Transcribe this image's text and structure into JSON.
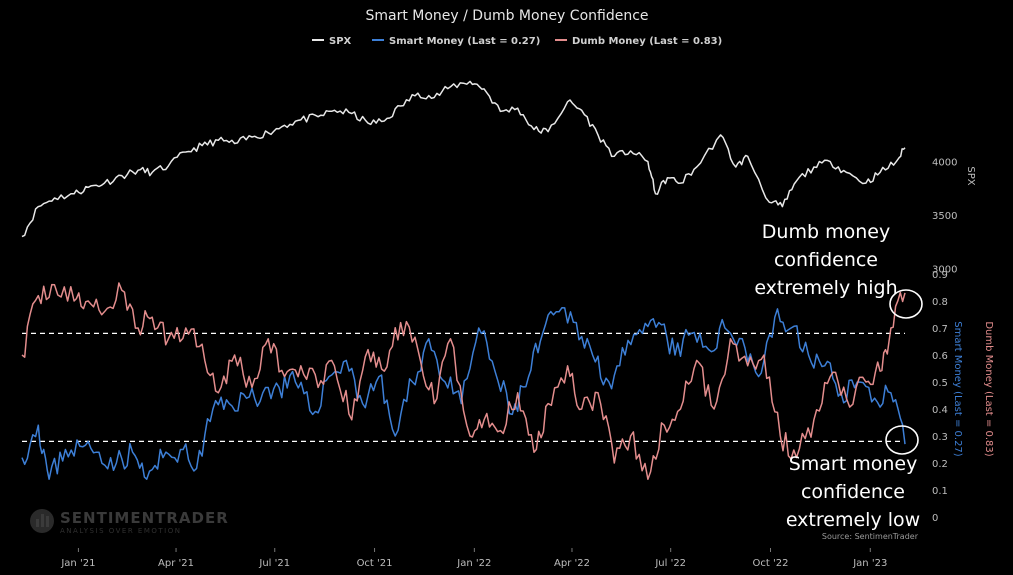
{
  "chart_data": {
    "type": "line",
    "title": "Smart Money / Dumb Money Confidence",
    "x_ticks": [
      "Jan '21",
      "Apr '21",
      "Jul '21",
      "Oct '21",
      "Jan '22",
      "Apr '22",
      "Jul '22",
      "Oct '22",
      "Jan '23"
    ],
    "spx_axis": {
      "label": "SPX",
      "ticks": [
        3000,
        3500,
        4000
      ],
      "range": [
        2950,
        4950
      ]
    },
    "confidence_axis": {
      "ticks": [
        0,
        0.1,
        0.2,
        0.3,
        0.4,
        0.5,
        0.6,
        0.7,
        0.8,
        0.9
      ],
      "range": [
        0,
        0.9
      ]
    },
    "series": [
      {
        "name": "SPX",
        "color": "#e8e8e8",
        "x": [
          "2020-11-10",
          "2020-11-25",
          "2020-12-10",
          "2020-12-28",
          "2021-01-10",
          "2021-01-25",
          "2021-02-10",
          "2021-02-25",
          "2021-03-10",
          "2021-03-25",
          "2021-04-10",
          "2021-04-25",
          "2021-05-10",
          "2021-05-25",
          "2021-06-10",
          "2021-06-25",
          "2021-07-10",
          "2021-07-25",
          "2021-08-10",
          "2021-08-25",
          "2021-09-10",
          "2021-09-25",
          "2021-10-10",
          "2021-10-25",
          "2021-11-10",
          "2021-11-25",
          "2021-12-10",
          "2021-12-28",
          "2022-01-10",
          "2022-01-25",
          "2022-02-10",
          "2022-02-25",
          "2022-03-10",
          "2022-03-28",
          "2022-04-10",
          "2022-04-25",
          "2022-05-10",
          "2022-05-25",
          "2022-06-10",
          "2022-06-17",
          "2022-06-28",
          "2022-07-10",
          "2022-07-25",
          "2022-08-16",
          "2022-08-30",
          "2022-09-10",
          "2022-09-30",
          "2022-10-12",
          "2022-10-25",
          "2022-11-10",
          "2022-11-25",
          "2022-12-10",
          "2022-12-28",
          "2023-01-10",
          "2023-01-25",
          "2023-02-02"
        ],
        "values": [
          3300,
          3580,
          3660,
          3700,
          3760,
          3800,
          3870,
          3920,
          3900,
          3960,
          4090,
          4150,
          4200,
          4170,
          4230,
          4270,
          4340,
          4390,
          4420,
          4480,
          4450,
          4360,
          4380,
          4520,
          4640,
          4600,
          4700,
          4750,
          4680,
          4470,
          4500,
          4300,
          4280,
          4560,
          4480,
          4250,
          4050,
          4100,
          4000,
          3700,
          3850,
          3800,
          3950,
          4250,
          3950,
          4050,
          3620,
          3580,
          3820,
          3950,
          4000,
          3900,
          3800,
          3900,
          4000,
          4130
        ]
      },
      {
        "name": "Smart Money (Last = 0.27)",
        "color": "#3d7fd6",
        "x": [
          "2020-11-10",
          "2020-11-25",
          "2020-12-05",
          "2020-12-20",
          "2021-01-05",
          "2021-01-20",
          "2021-02-05",
          "2021-02-20",
          "2021-03-05",
          "2021-03-20",
          "2021-04-05",
          "2021-04-20",
          "2021-05-05",
          "2021-05-20",
          "2021-06-05",
          "2021-06-20",
          "2021-07-05",
          "2021-07-20",
          "2021-08-05",
          "2021-08-20",
          "2021-09-05",
          "2021-09-20",
          "2021-10-05",
          "2021-10-20",
          "2021-11-05",
          "2021-11-20",
          "2021-12-05",
          "2021-12-20",
          "2022-01-05",
          "2022-01-20",
          "2022-02-05",
          "2022-02-20",
          "2022-03-05",
          "2022-03-20",
          "2022-04-05",
          "2022-04-20",
          "2022-05-05",
          "2022-05-20",
          "2022-06-05",
          "2022-06-20",
          "2022-07-05",
          "2022-07-20",
          "2022-08-05",
          "2022-08-20",
          "2022-09-05",
          "2022-09-20",
          "2022-10-05",
          "2022-10-20",
          "2022-11-05",
          "2022-11-20",
          "2022-12-05",
          "2022-12-20",
          "2023-01-05",
          "2023-01-20",
          "2023-02-02"
        ],
        "values": [
          0.22,
          0.34,
          0.14,
          0.25,
          0.26,
          0.24,
          0.2,
          0.24,
          0.14,
          0.22,
          0.25,
          0.18,
          0.4,
          0.42,
          0.44,
          0.46,
          0.48,
          0.5,
          0.38,
          0.52,
          0.58,
          0.42,
          0.52,
          0.3,
          0.5,
          0.66,
          0.5,
          0.42,
          0.7,
          0.54,
          0.38,
          0.52,
          0.68,
          0.76,
          0.72,
          0.6,
          0.5,
          0.6,
          0.68,
          0.72,
          0.6,
          0.68,
          0.62,
          0.7,
          0.66,
          0.52,
          0.74,
          0.7,
          0.6,
          0.56,
          0.46,
          0.5,
          0.44,
          0.46,
          0.27
        ]
      },
      {
        "name": "Dumb Money (Last = 0.83)",
        "color": "#e38d8d",
        "x": [
          "2020-11-10",
          "2020-11-25",
          "2020-12-10",
          "2020-12-28",
          "2021-01-10",
          "2021-01-25",
          "2021-02-10",
          "2021-02-25",
          "2021-03-10",
          "2021-03-25",
          "2021-04-10",
          "2021-04-25",
          "2021-05-10",
          "2021-05-25",
          "2021-06-10",
          "2021-06-25",
          "2021-07-10",
          "2021-07-25",
          "2021-08-10",
          "2021-08-25",
          "2021-09-10",
          "2021-09-25",
          "2021-10-10",
          "2021-10-25",
          "2021-11-10",
          "2021-11-25",
          "2021-12-10",
          "2021-12-28",
          "2022-01-10",
          "2022-01-25",
          "2022-02-10",
          "2022-02-25",
          "2022-03-10",
          "2022-03-28",
          "2022-04-10",
          "2022-04-25",
          "2022-05-10",
          "2022-05-25",
          "2022-06-10",
          "2022-06-25",
          "2022-07-10",
          "2022-07-25",
          "2022-08-10",
          "2022-08-25",
          "2022-09-10",
          "2022-09-25",
          "2022-10-10",
          "2022-10-25",
          "2022-11-10",
          "2022-11-25",
          "2022-12-10",
          "2022-12-28",
          "2023-01-10",
          "2023-01-20",
          "2023-02-02"
        ],
        "values": [
          0.6,
          0.82,
          0.86,
          0.8,
          0.8,
          0.76,
          0.84,
          0.7,
          0.74,
          0.66,
          0.7,
          0.64,
          0.46,
          0.6,
          0.48,
          0.66,
          0.52,
          0.56,
          0.48,
          0.56,
          0.36,
          0.62,
          0.54,
          0.72,
          0.62,
          0.42,
          0.66,
          0.3,
          0.36,
          0.32,
          0.46,
          0.24,
          0.42,
          0.56,
          0.4,
          0.46,
          0.2,
          0.3,
          0.14,
          0.34,
          0.4,
          0.58,
          0.4,
          0.66,
          0.56,
          0.6,
          0.3,
          0.22,
          0.36,
          0.52,
          0.44,
          0.5,
          0.54,
          0.7,
          0.83
        ]
      }
    ],
    "reference_lines": [
      0.68,
      0.28
    ],
    "annotations": [
      {
        "lines": [
          "Dumb money",
          "confidence",
          "extremely high"
        ]
      },
      {
        "lines": [
          "Smart money",
          "confidence",
          "extremely low"
        ]
      }
    ],
    "source": "Source: SentimenTrader",
    "watermark": {
      "brand": "SENTIMENTRADER",
      "tagline": "ANALYSIS OVER EMOTION"
    },
    "legend_position": "top-center",
    "grid": false
  }
}
